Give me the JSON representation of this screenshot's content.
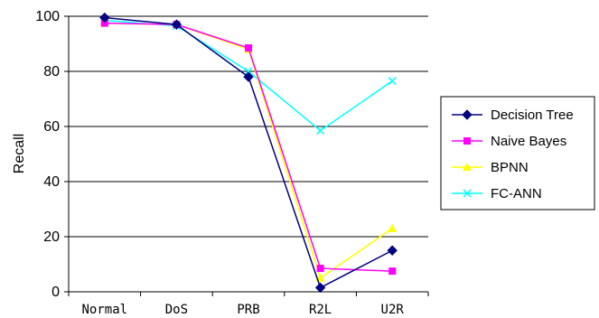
{
  "chart_data": {
    "type": "line",
    "title": "",
    "xlabel": "",
    "ylabel": "Recall",
    "categories": [
      "Normal",
      "DoS",
      "PRB",
      "R2L",
      "U2R"
    ],
    "ylim": [
      0,
      100
    ],
    "yticks": [
      0,
      20,
      40,
      60,
      80,
      100
    ],
    "grid": "horizontal",
    "legend_position": "right",
    "series": [
      {
        "name": "Decision Tree",
        "values": [
          99.5,
          97.0,
          78.0,
          1.5,
          15.0
        ],
        "color": "#000080",
        "marker": "diamond"
      },
      {
        "name": "Naive Bayes",
        "values": [
          97.5,
          97.0,
          88.5,
          8.5,
          7.5
        ],
        "color": "#ff00ff",
        "marker": "square"
      },
      {
        "name": "BPNN",
        "values": [
          97.5,
          97.0,
          88.0,
          5.0,
          23.0
        ],
        "color": "#ffff00",
        "marker": "triangle"
      },
      {
        "name": "FC-ANN",
        "values": [
          98.5,
          96.5,
          80.0,
          58.5,
          76.5
        ],
        "color": "#00ffff",
        "marker": "x"
      }
    ]
  }
}
